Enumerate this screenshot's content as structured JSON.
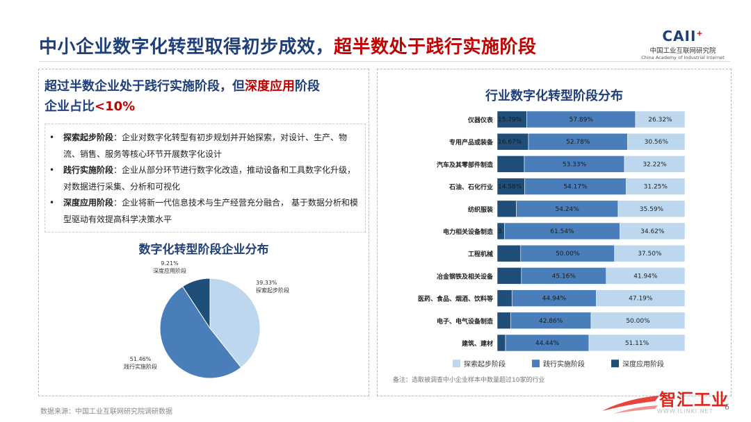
{
  "header": {
    "title_main": "中小企业数字化转型取得初步成效，",
    "title_highlight": "超半数处于践行实施阶段",
    "logo_mark": "CAII",
    "logo_cn": "中国工业互联网研究院",
    "logo_en": "China Academy of Industrial Internet"
  },
  "left": {
    "headline_a": "超过半数企业处于践行实施阶段，但",
    "headline_hl": "深度应用",
    "headline_b": "阶段",
    "headline_c": "企业占比",
    "headline_hl2": "<10%",
    "bullets": [
      {
        "term": "探索起步阶段",
        "text": "：企业对数字化转型有初步规划并开始探索，对设计、生产、物流、销售、服务等核心环节开展数字化设计"
      },
      {
        "term": "践行实施阶段",
        "text": "：企业从部分环节进行数字化改造，推动设备和工具数字化升级，对数据进行采集、分析和可视化"
      },
      {
        "term": "深度应用阶段",
        "text": "：企业将新一代信息技术与生产经营充分融合， 基于数据分析和模型驱动有效提高科学决策水平"
      }
    ]
  },
  "chart_data": [
    {
      "type": "pie",
      "title": "数字化转型阶段企业分布",
      "slices": [
        {
          "label": "探索起步阶段",
          "value": 39.33,
          "text": "39.33%",
          "color": "#bdd7ee"
        },
        {
          "label": "践行实施阶段",
          "value": 51.46,
          "text": "51.46%",
          "color": "#4a7ebb"
        },
        {
          "label": "深度应用阶段",
          "value": 9.21,
          "text": "9.21%",
          "color": "#1f4e79"
        }
      ]
    },
    {
      "type": "bar",
      "orientation": "horizontal-stacked-100",
      "title": "行业数字化转型阶段分布",
      "categories": [
        "仪器仪表",
        "专用产品或装备",
        "汽车及其零部件制造",
        "石油、石化行业",
        "纺织服装",
        "电力相关设备制造",
        "工程机械",
        "冶金钢铁及相关设备",
        "医药、食品、烟酒、饮料等",
        "电子、电气设备制造",
        "建筑、建材"
      ],
      "series": [
        {
          "name": "探索起步阶段",
          "color": "#bdd7ee",
          "values": [
            26.32,
            30.56,
            32.22,
            31.25,
            35.59,
            34.62,
            37.5,
            41.94,
            47.19,
            50.0,
            51.11
          ],
          "labels": [
            "26.32%",
            "30.56%",
            "32.22%",
            "31.25%",
            "35.59%",
            "34.62%",
            "37.50%",
            "41.94%",
            "47.19%",
            "50.00%",
            "51.11%"
          ]
        },
        {
          "name": "践行实施阶段",
          "color": "#4a7ebb",
          "values": [
            57.89,
            52.78,
            53.33,
            54.17,
            54.24,
            61.54,
            50.0,
            45.16,
            44.94,
            42.86,
            44.44
          ],
          "labels": [
            "57.89%",
            "52.78%",
            "53.33%",
            "54.17%",
            "54.24%",
            "61.54%",
            "50.00%",
            "45.16%",
            "44.94%",
            "42.86%",
            "44.44%"
          ]
        },
        {
          "name": "深度应用阶段",
          "color": "#1f4e79",
          "values": [
            15.79,
            16.67,
            14.45,
            14.58,
            10.17,
            3.85,
            12.5,
            12.9,
            7.87,
            7.14,
            4.45
          ],
          "labels": [
            "15.79%",
            "16.67%",
            "",
            "14.58%",
            "",
            "3.85%",
            "",
            "",
            "",
            "",
            ""
          ]
        }
      ],
      "legend": [
        "探索起步阶段",
        "践行实施阶段",
        "深度应用阶段"
      ],
      "legend_position": "bottom",
      "xlim": [
        0,
        100
      ],
      "note": "备注：选取被调查中小企业样本中数量超过10家的行业"
    }
  ],
  "footer": {
    "source": "数据来源：中国工业互联网研究院调研数据",
    "page": "6",
    "watermark_text": "智汇工业",
    "watermark_url": "WWW.ILINKI.NET"
  }
}
